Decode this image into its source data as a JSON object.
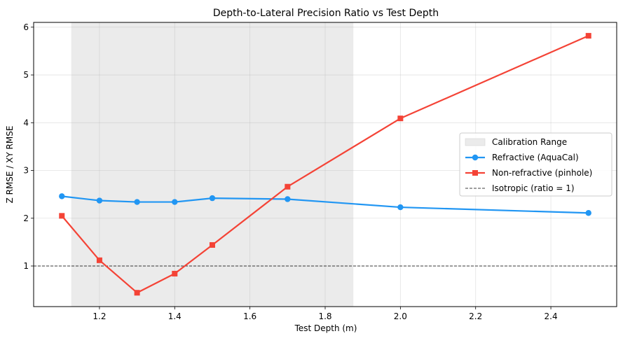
{
  "chart_data": {
    "type": "line",
    "title": "Depth-to-Lateral Precision Ratio vs Test Depth",
    "xlabel": "Test Depth (m)",
    "ylabel": "Z RMSE / XY RMSE",
    "xlim": [
      1.025,
      2.575
    ],
    "ylim": [
      0.15,
      6.1
    ],
    "x_ticks": [
      1.2,
      1.4,
      1.6,
      1.8,
      2.0,
      2.2,
      2.4
    ],
    "x_tick_labels": [
      "1.2",
      "1.4",
      "1.6",
      "1.8",
      "2.0",
      "2.2",
      "2.4"
    ],
    "y_ticks": [
      1,
      2,
      3,
      4,
      5,
      6
    ],
    "y_tick_labels": [
      "1",
      "2",
      "3",
      "4",
      "5",
      "6"
    ],
    "grid": true,
    "legend_position": "center-right",
    "calibration_range": {
      "name": "Calibration Range",
      "x_start": 1.125,
      "x_end": 1.875,
      "color": "#ebebeb"
    },
    "reference_line": {
      "name": "Isotropic (ratio = 1)",
      "y": 1,
      "color": "#000000",
      "style": "dashed"
    },
    "series": [
      {
        "name": "Refractive (AquaCal)",
        "marker": "circle",
        "color": "#2196f3",
        "x": [
          1.1,
          1.2,
          1.3,
          1.4,
          1.5,
          1.7,
          2.0,
          2.5
        ],
        "y": [
          2.46,
          2.37,
          2.34,
          2.34,
          2.42,
          2.4,
          2.23,
          2.11
        ]
      },
      {
        "name": "Non-refractive (pinhole)",
        "marker": "square",
        "color": "#f44336",
        "x": [
          1.1,
          1.2,
          1.3,
          1.4,
          1.5,
          1.7,
          2.0,
          2.5
        ],
        "y": [
          2.05,
          1.12,
          0.44,
          0.84,
          1.44,
          2.66,
          4.09,
          5.82
        ]
      }
    ]
  }
}
